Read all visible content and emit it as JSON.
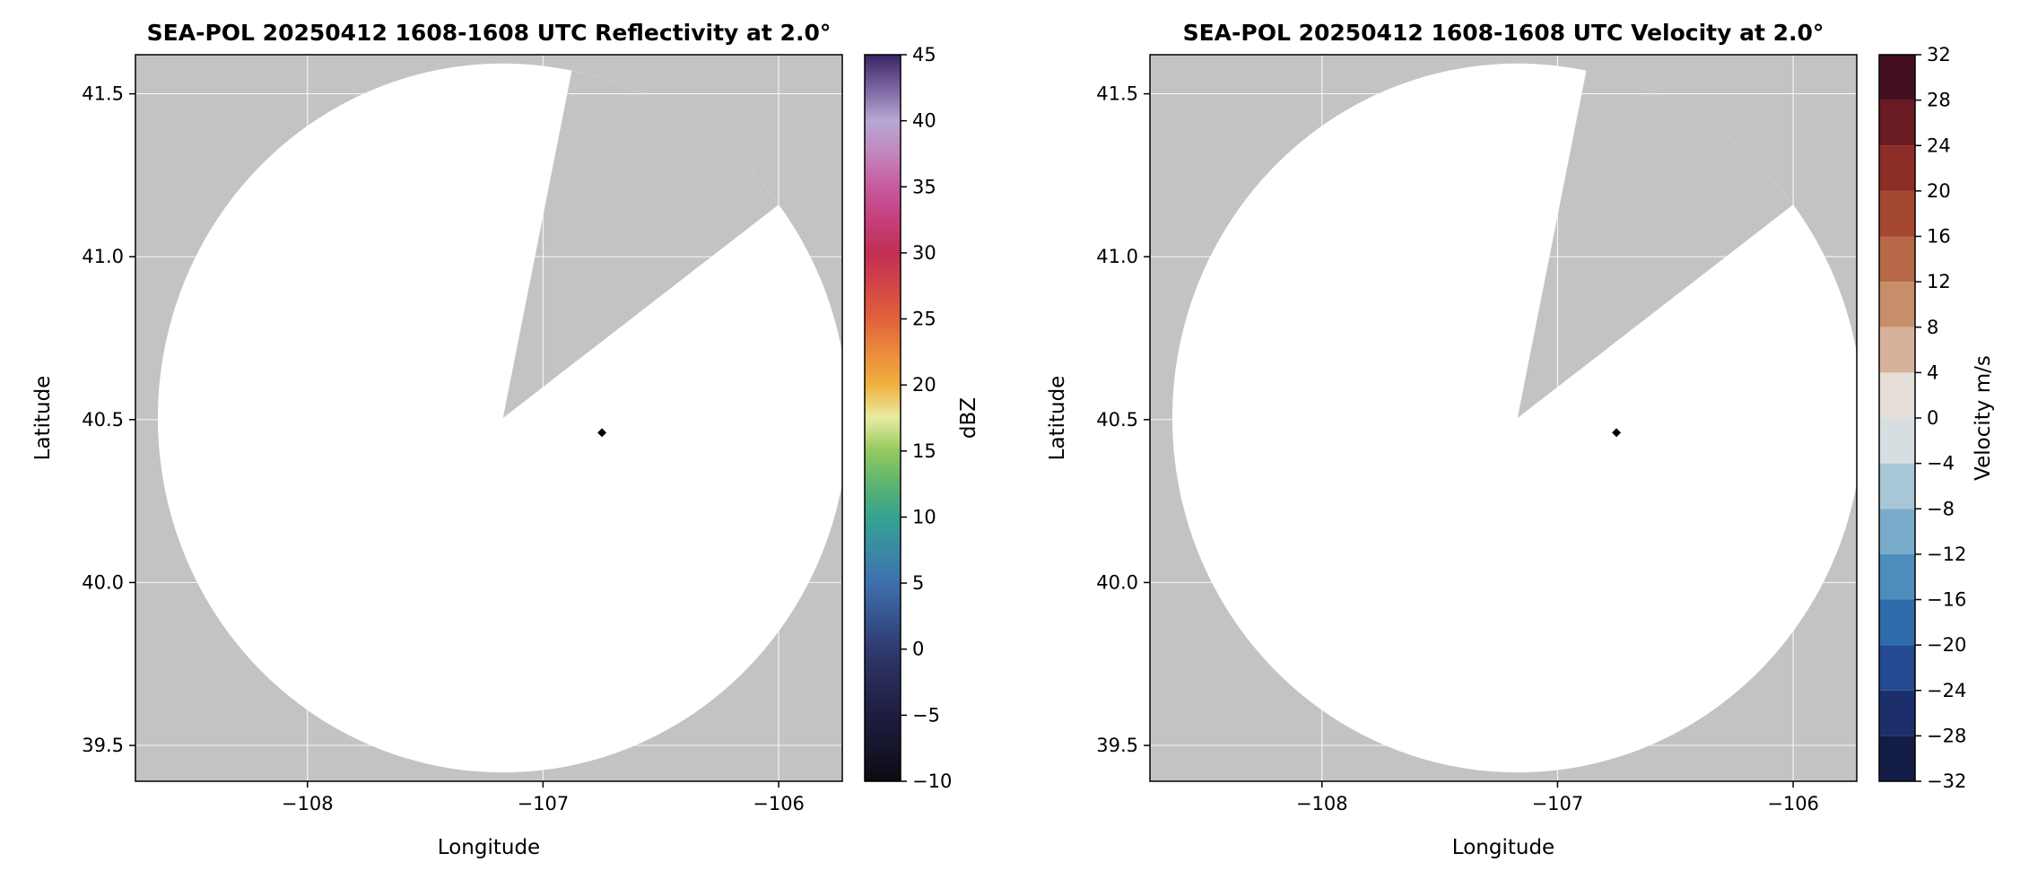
{
  "figure": {
    "background": "#ffffff",
    "map_background": "#c3c3c3",
    "coverage_color": "#ffffff",
    "grid_color": "#ffffff",
    "frame_color": "#000000",
    "marker_color": "#000000"
  },
  "chart_data": {
    "type": "heatmap",
    "description": "Two radar PPI map panels: SEA-POL reflectivity and velocity at 2.0 degree elevation. Gray map background, white circular radar coverage disk with a gray missing-data wedge toward the north-northeast, and a small black diamond marker east of the radar center.",
    "radar": {
      "center": {
        "lon": -107.17,
        "lat": 40.505
      },
      "radius_deg": {
        "lon": 1.465,
        "lat": 1.088
      },
      "missing_sector_azimuth_deg": {
        "start": 11.5,
        "end": 53
      },
      "marker": {
        "lon": -106.75,
        "lat": 40.46
      }
    },
    "panels": [
      {
        "id": "reflectivity",
        "title": "SEA-POL 20250412 1608-1608 UTC Reflectivity at 2.0°",
        "xlabel": "Longitude",
        "ylabel": "Latitude",
        "xlim": [
          -108.73,
          -105.73
        ],
        "ylim": [
          39.39,
          41.62
        ],
        "xticks": [
          {
            "v": -108,
            "label": "−108"
          },
          {
            "v": -107,
            "label": "−107"
          },
          {
            "v": -106,
            "label": "−106"
          }
        ],
        "yticks": [
          {
            "v": 39.5,
            "label": "39.5"
          },
          {
            "v": 40.0,
            "label": "40.0"
          },
          {
            "v": 40.5,
            "label": "40.5"
          },
          {
            "v": 41.0,
            "label": "41.0"
          },
          {
            "v": 41.5,
            "label": "41.5"
          }
        ],
        "colorbar": {
          "label": "dBZ",
          "min": -10,
          "max": 45,
          "style": "continuous",
          "ticks": [
            {
              "v": -10,
              "label": "−10"
            },
            {
              "v": -5,
              "label": "−5"
            },
            {
              "v": 0,
              "label": "0"
            },
            {
              "v": 5,
              "label": "5"
            },
            {
              "v": 10,
              "label": "10"
            },
            {
              "v": 15,
              "label": "15"
            },
            {
              "v": 20,
              "label": "20"
            },
            {
              "v": 25,
              "label": "25"
            },
            {
              "v": 30,
              "label": "30"
            },
            {
              "v": 35,
              "label": "35"
            },
            {
              "v": 40,
              "label": "40"
            },
            {
              "v": 45,
              "label": "45"
            }
          ],
          "gradient": [
            {
              "v": -10,
              "color": "#0b0a10"
            },
            {
              "v": -7.5,
              "color": "#16152b"
            },
            {
              "v": -5,
              "color": "#1e1d40"
            },
            {
              "v": -2.5,
              "color": "#272a55"
            },
            {
              "v": 0,
              "color": "#2e3a6e"
            },
            {
              "v": 2.5,
              "color": "#375590"
            },
            {
              "v": 5,
              "color": "#3f6fae"
            },
            {
              "v": 7.5,
              "color": "#3a8aa6"
            },
            {
              "v": 10,
              "color": "#35a38f"
            },
            {
              "v": 12.5,
              "color": "#5cb470"
            },
            {
              "v": 15,
              "color": "#93c95e"
            },
            {
              "v": 17.5,
              "color": "#e9eba2"
            },
            {
              "v": 20,
              "color": "#f0b13f"
            },
            {
              "v": 22.5,
              "color": "#ea8a3d"
            },
            {
              "v": 25,
              "color": "#e2613b"
            },
            {
              "v": 27.5,
              "color": "#d24547"
            },
            {
              "v": 30,
              "color": "#c22f55"
            },
            {
              "v": 32.5,
              "color": "#c43f7b"
            },
            {
              "v": 35,
              "color": "#c75a9e"
            },
            {
              "v": 37.5,
              "color": "#c285bd"
            },
            {
              "v": 40,
              "color": "#b7a8d4"
            },
            {
              "v": 42.5,
              "color": "#7a64a0"
            },
            {
              "v": 45,
              "color": "#3a2465"
            }
          ]
        }
      },
      {
        "id": "velocity",
        "title": "SEA-POL 20250412 1608-1608 UTC Velocity at 2.0°",
        "xlabel": "Longitude",
        "ylabel": "Latitude",
        "xlim": [
          -108.73,
          -105.73
        ],
        "ylim": [
          39.39,
          41.62
        ],
        "xticks": [
          {
            "v": -108,
            "label": "−108"
          },
          {
            "v": -107,
            "label": "−107"
          },
          {
            "v": -106,
            "label": "−106"
          }
        ],
        "yticks": [
          {
            "v": 39.5,
            "label": "39.5"
          },
          {
            "v": 40.0,
            "label": "40.0"
          },
          {
            "v": 40.5,
            "label": "40.5"
          },
          {
            "v": 41.0,
            "label": "41.0"
          },
          {
            "v": 41.5,
            "label": "41.5"
          }
        ],
        "colorbar": {
          "label": "Velocity m/s",
          "min": -32,
          "max": 32,
          "style": "discrete",
          "ticks": [
            {
              "v": -32,
              "label": "−32"
            },
            {
              "v": -28,
              "label": "−28"
            },
            {
              "v": -24,
              "label": "−24"
            },
            {
              "v": -20,
              "label": "−20"
            },
            {
              "v": -16,
              "label": "−16"
            },
            {
              "v": -12,
              "label": "−12"
            },
            {
              "v": -8,
              "label": "−8"
            },
            {
              "v": -4,
              "label": "−4"
            },
            {
              "v": 0,
              "label": "0"
            },
            {
              "v": 4,
              "label": "4"
            },
            {
              "v": 8,
              "label": "8"
            },
            {
              "v": 12,
              "label": "12"
            },
            {
              "v": 16,
              "label": "16"
            },
            {
              "v": 20,
              "label": "20"
            },
            {
              "v": 24,
              "label": "24"
            },
            {
              "v": 28,
              "label": "28"
            },
            {
              "v": 32,
              "label": "32"
            }
          ],
          "segments": [
            {
              "from": -32,
              "to": -28,
              "color": "#131c44"
            },
            {
              "from": -28,
              "to": -24,
              "color": "#1d2f6b"
            },
            {
              "from": -24,
              "to": -20,
              "color": "#234a92"
            },
            {
              "from": -20,
              "to": -16,
              "color": "#2f6cab"
            },
            {
              "from": -16,
              "to": -12,
              "color": "#4d8dbc"
            },
            {
              "from": -12,
              "to": -8,
              "color": "#79abcb"
            },
            {
              "from": -8,
              "to": -4,
              "color": "#a7c6d6"
            },
            {
              "from": -4,
              "to": 0,
              "color": "#d6dee2"
            },
            {
              "from": 0,
              "to": 4,
              "color": "#e5ddd7"
            },
            {
              "from": 4,
              "to": 8,
              "color": "#d6b29a"
            },
            {
              "from": 8,
              "to": 12,
              "color": "#c78e6a"
            },
            {
              "from": 12,
              "to": 16,
              "color": "#b76947"
            },
            {
              "from": 16,
              "to": 20,
              "color": "#a54832"
            },
            {
              "from": 20,
              "to": 24,
              "color": "#8c2d26"
            },
            {
              "from": 24,
              "to": 28,
              "color": "#6a1a22"
            },
            {
              "from": 28,
              "to": 32,
              "color": "#42101e"
            }
          ]
        }
      }
    ]
  }
}
